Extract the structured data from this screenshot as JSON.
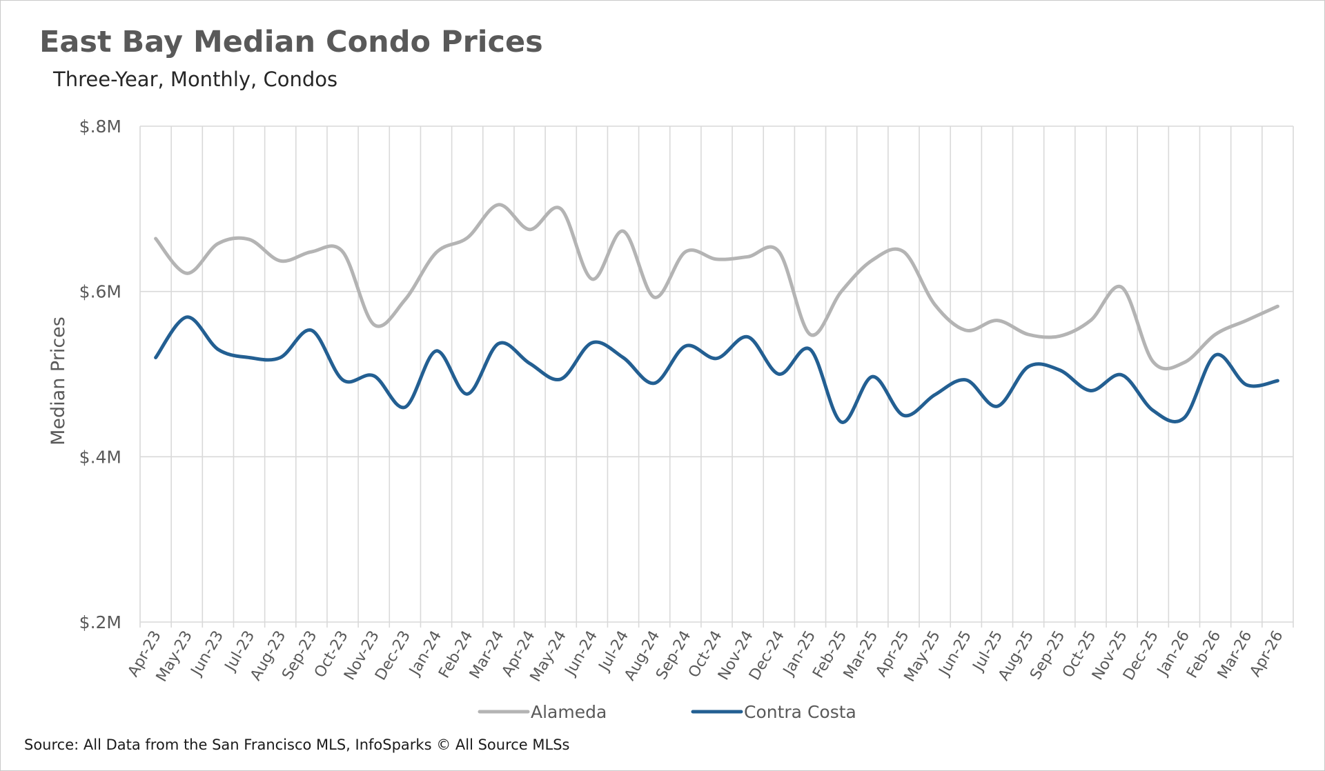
{
  "title": "East Bay Median Condo Prices",
  "subtitle": "Three-Year, Monthly, Condos",
  "source": "Source: All Data from the San Francisco MLS, InfoSparks © All Source MLSs",
  "colors": {
    "alameda": "#b4b4b4",
    "contra_costa": "#235f92",
    "grid": "#d9d9d9"
  },
  "chart_data": {
    "type": "line",
    "ylabel": "Median Prices",
    "ylim": [
      0.2,
      0.8
    ],
    "yticks": [
      0.2,
      0.4,
      0.6,
      0.8
    ],
    "ytick_labels": [
      "$.2M",
      "$.4M",
      "$.6M",
      "$.8M"
    ],
    "grid": true,
    "legend_position": "bottom",
    "categories": [
      "Apr-23",
      "May-23",
      "Jun-23",
      "Jul-23",
      "Aug-23",
      "Sep-23",
      "Oct-23",
      "Nov-23",
      "Dec-23",
      "Jan-24",
      "Feb-24",
      "Mar-24",
      "Apr-24",
      "May-24",
      "Jun-24",
      "Jul-24",
      "Aug-24",
      "Sep-24",
      "Oct-24",
      "Nov-24",
      "Dec-24",
      "Jan-25",
      "Feb-25",
      "Mar-25",
      "Apr-25",
      "May-25",
      "Jun-25",
      "Jul-25",
      "Aug-25",
      "Sep-25",
      "Oct-25",
      "Nov-25",
      "Dec-25",
      "Jan-26",
      "Feb-26",
      "Mar-26",
      "Apr-26"
    ],
    "series": [
      {
        "name": "Alameda",
        "values": [
          0.664,
          0.622,
          0.658,
          0.663,
          0.637,
          0.648,
          0.648,
          0.56,
          0.59,
          0.647,
          0.665,
          0.705,
          0.675,
          0.7,
          0.615,
          0.673,
          0.593,
          0.648,
          0.639,
          0.642,
          0.648,
          0.548,
          0.6,
          0.638,
          0.648,
          0.584,
          0.553,
          0.565,
          0.548,
          0.546,
          0.565,
          0.605,
          0.515,
          0.514,
          0.548,
          0.565,
          0.582
        ]
      },
      {
        "name": "Contra Costa",
        "values": [
          0.52,
          0.569,
          0.53,
          0.52,
          0.52,
          0.553,
          0.493,
          0.498,
          0.46,
          0.528,
          0.476,
          0.537,
          0.513,
          0.494,
          0.538,
          0.52,
          0.489,
          0.534,
          0.519,
          0.545,
          0.5,
          0.53,
          0.442,
          0.497,
          0.45,
          0.475,
          0.493,
          0.461,
          0.509,
          0.505,
          0.48,
          0.499,
          0.456,
          0.447,
          0.523,
          0.487,
          0.492
        ]
      }
    ]
  }
}
